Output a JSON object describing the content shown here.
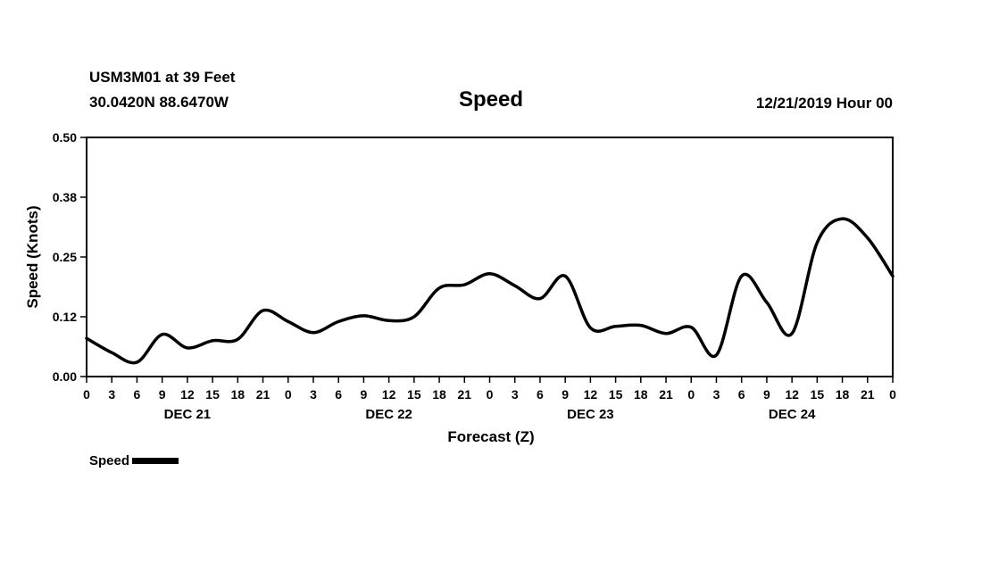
{
  "header": {
    "station_line1": "USM3M01 at 39 Feet",
    "station_line2": "30.0420N 88.6470W",
    "title": "Speed",
    "datetime": "12/21/2019 Hour 00"
  },
  "legend": {
    "label": "Speed"
  },
  "colors": {
    "line": "#000000",
    "background": "#ffffff",
    "text": "#000000"
  },
  "chart_data": {
    "type": "line",
    "title": "Speed",
    "xlabel": "Forecast (Z)",
    "ylabel": "Speed (Knots)",
    "xlim": [
      0,
      96
    ],
    "ylim": [
      0,
      0.5
    ],
    "grid": false,
    "legend_position": "bottom-left",
    "x": [
      0,
      3,
      6,
      9,
      12,
      15,
      18,
      21,
      24,
      27,
      30,
      33,
      36,
      39,
      42,
      45,
      48,
      51,
      54,
      57,
      60,
      63,
      66,
      69,
      72,
      75,
      78,
      81,
      84,
      87,
      90,
      93,
      96
    ],
    "x_tick_labels": [
      "0",
      "3",
      "6",
      "9",
      "12",
      "15",
      "18",
      "21",
      "0",
      "3",
      "6",
      "9",
      "12",
      "15",
      "18",
      "21",
      "0",
      "3",
      "6",
      "9",
      "12",
      "15",
      "18",
      "21",
      "0",
      "3",
      "6",
      "9",
      "12",
      "15",
      "18",
      "21",
      "0"
    ],
    "y_ticks": [
      {
        "value": 0.0,
        "label": "0.00"
      },
      {
        "value": 0.125,
        "label": "0.12"
      },
      {
        "value": 0.25,
        "label": "0.25"
      },
      {
        "value": 0.375,
        "label": "0.38"
      },
      {
        "value": 0.5,
        "label": "0.50"
      }
    ],
    "day_labels": [
      {
        "label": "DEC 21",
        "center_hour": 12
      },
      {
        "label": "DEC 22",
        "center_hour": 36
      },
      {
        "label": "DEC 23",
        "center_hour": 60
      },
      {
        "label": "DEC 24",
        "center_hour": 84
      }
    ],
    "series": [
      {
        "name": "Speed",
        "color": "#000000",
        "units": "Knots",
        "values": [
          0.08,
          0.05,
          0.03,
          0.088,
          0.06,
          0.075,
          0.078,
          0.138,
          0.115,
          0.092,
          0.115,
          0.127,
          0.117,
          0.125,
          0.185,
          0.192,
          0.215,
          0.19,
          0.163,
          0.21,
          0.102,
          0.105,
          0.107,
          0.09,
          0.103,
          0.045,
          0.21,
          0.155,
          0.09,
          0.28,
          0.33,
          0.29,
          0.21
        ]
      }
    ]
  }
}
